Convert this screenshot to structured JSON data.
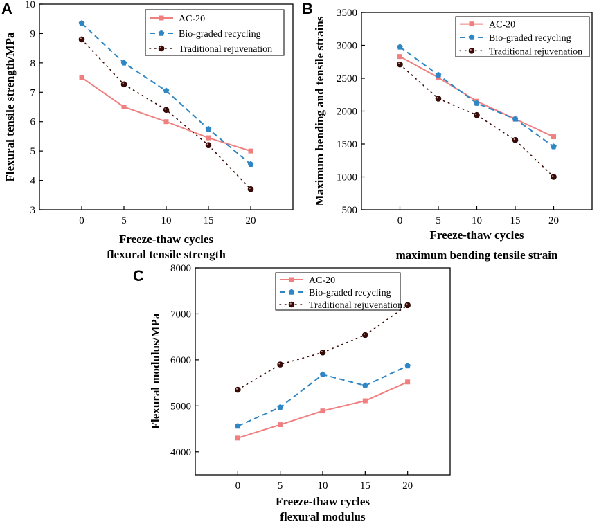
{
  "colors": {
    "ac20": "#f08080",
    "bio": "#2f86c4",
    "trad": "#3a0a06",
    "axis": "#000000"
  },
  "legend_labels": [
    "AC-20",
    "Bio-graded recycling",
    "Traditional rejuvenation"
  ],
  "chart_data": [
    {
      "panel": "A",
      "type": "line",
      "title": "",
      "xlabel": "Freeze-thaw cycles",
      "ylabel": "Flexural tensile strength/MPa",
      "caption": "flexural tensile strength",
      "x": [
        0,
        5,
        10,
        15,
        20
      ],
      "xlim": [
        -5,
        25
      ],
      "ylim": [
        3,
        10
      ],
      "yticks": [
        3,
        4,
        5,
        6,
        7,
        8,
        9,
        10
      ],
      "series": [
        {
          "name": "AC-20",
          "values": [
            7.5,
            6.5,
            6.0,
            5.45,
            5.0
          ]
        },
        {
          "name": "Bio-graded recycling",
          "values": [
            9.35,
            8.0,
            7.05,
            5.75,
            4.55
          ]
        },
        {
          "name": "Traditional rejuvenation",
          "values": [
            8.8,
            7.27,
            6.4,
            5.2,
            3.7
          ]
        }
      ]
    },
    {
      "panel": "B",
      "type": "line",
      "title": "",
      "xlabel": "Freeze-thaw cycles",
      "ylabel": "Maximum bending and tensile strains",
      "caption": "maximum bending tensile strain",
      "x": [
        0,
        5,
        10,
        15,
        20
      ],
      "xlim": [
        -5,
        25
      ],
      "ylim": [
        500,
        3500
      ],
      "yticks": [
        500,
        1000,
        1500,
        2000,
        2500,
        3000,
        3500
      ],
      "series": [
        {
          "name": "AC-20",
          "values": [
            2830,
            2510,
            2150,
            1880,
            1610
          ]
        },
        {
          "name": "Bio-graded recycling",
          "values": [
            2975,
            2550,
            2120,
            1880,
            1460
          ]
        },
        {
          "name": "Traditional rejuvenation",
          "values": [
            2710,
            2190,
            1940,
            1560,
            1000
          ]
        }
      ]
    },
    {
      "panel": "C",
      "type": "line",
      "title": "",
      "xlabel": "Freeze-thaw cycles",
      "ylabel": "Flexural modulus/MPa",
      "caption": "flexural modulus",
      "x": [
        0,
        5,
        10,
        15,
        20
      ],
      "xlim": [
        -5,
        25
      ],
      "ylim": [
        3500,
        8000
      ],
      "yticks": [
        4000,
        5000,
        6000,
        7000,
        8000
      ],
      "series": [
        {
          "name": "AC-20",
          "values": [
            4300,
            4590,
            4890,
            5110,
            5520
          ]
        },
        {
          "name": "Bio-graded recycling",
          "values": [
            4560,
            4970,
            5680,
            5440,
            5870
          ]
        },
        {
          "name": "Traditional rejuvenation",
          "values": [
            5350,
            5900,
            6160,
            6540,
            7190
          ]
        }
      ]
    }
  ]
}
